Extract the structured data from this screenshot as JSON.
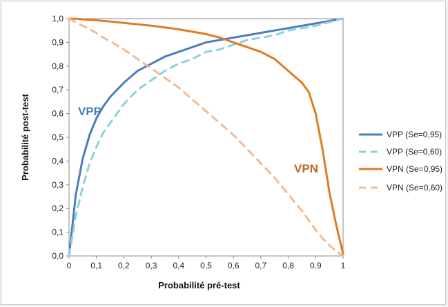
{
  "chart_data": {
    "type": "line",
    "xlabel": "Probabilité pré-test",
    "ylabel": "Probabilité post-test",
    "xlim": [
      0,
      1
    ],
    "ylim": [
      0,
      1
    ],
    "x_tick_labels": [
      "0",
      "0,1",
      "0,2",
      "0,3",
      "0,4",
      "0,5",
      "0,6",
      "0,7",
      "0,8",
      "0,9",
      "1"
    ],
    "y_tick_labels": [
      "0,0",
      "0,1",
      "0,2",
      "0,3",
      "0,4",
      "0,5",
      "0,6",
      "0,7",
      "0,8",
      "0,9",
      "1,0"
    ],
    "grid": false,
    "legend_position": "right",
    "x": [
      0,
      0.025,
      0.05,
      0.075,
      0.1,
      0.125,
      0.15,
      0.2,
      0.25,
      0.3,
      0.35,
      0.4,
      0.45,
      0.5,
      0.55,
      0.6,
      0.65,
      0.7,
      0.75,
      0.8,
      0.85,
      0.875,
      0.9,
      0.925,
      0.95,
      0.975,
      1
    ],
    "series": [
      {
        "name": "VPP (Se=0,95)",
        "color": "#4a7ebb",
        "dash": false,
        "values": [
          0,
          0.26,
          0.41,
          0.51,
          0.58,
          0.63,
          0.67,
          0.73,
          0.78,
          0.81,
          0.84,
          0.86,
          0.88,
          0.9,
          0.91,
          0.92,
          0.93,
          0.94,
          0.95,
          0.96,
          0.97,
          0.975,
          0.98,
          0.985,
          0.99,
          0.995,
          1
        ]
      },
      {
        "name": "VPP (Se=0,60)",
        "color": "#8ecfe2",
        "dash": true,
        "values": [
          0,
          0.17,
          0.29,
          0.39,
          0.46,
          0.52,
          0.56,
          0.64,
          0.7,
          0.74,
          0.78,
          0.81,
          0.83,
          0.86,
          0.87,
          0.89,
          0.91,
          0.92,
          0.93,
          0.95,
          0.96,
          0.965,
          0.97,
          0.978,
          0.985,
          0.993,
          1
        ]
      },
      {
        "name": "VPN (Se=0,95)",
        "color": "#e07b22",
        "dash": false,
        "values": [
          1,
          0.999,
          0.997,
          0.995,
          0.993,
          0.99,
          0.988,
          0.982,
          0.976,
          0.97,
          0.963,
          0.955,
          0.945,
          0.935,
          0.92,
          0.9,
          0.88,
          0.86,
          0.83,
          0.78,
          0.73,
          0.69,
          0.6,
          0.45,
          0.27,
          0.13,
          0.01
        ]
      },
      {
        "name": "VPN (Se=0,60)",
        "color": "#f4bb92",
        "dash": true,
        "values": [
          1,
          0.985,
          0.97,
          0.955,
          0.94,
          0.92,
          0.905,
          0.87,
          0.83,
          0.79,
          0.75,
          0.71,
          0.66,
          0.61,
          0.56,
          0.51,
          0.45,
          0.39,
          0.33,
          0.26,
          0.19,
          0.15,
          0.11,
          0.075,
          0.045,
          0.02,
          0
        ]
      }
    ],
    "annotations": [
      {
        "text": "VPP",
        "color": "#4a7ebb"
      },
      {
        "text": "VPN",
        "color": "#c0651c"
      }
    ]
  }
}
